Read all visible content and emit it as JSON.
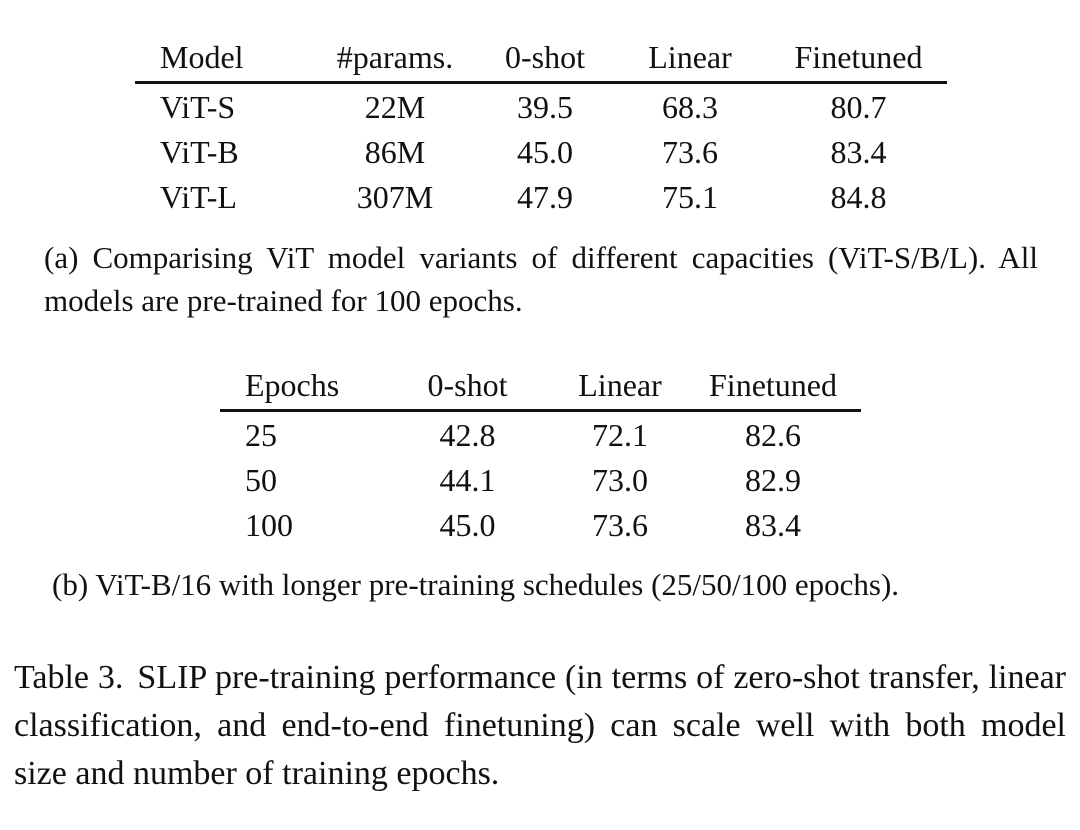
{
  "table_a": {
    "headers": [
      "Model",
      "#params.",
      "0-shot",
      "Linear",
      "Finetuned"
    ],
    "rows": [
      [
        "ViT-S",
        "22M",
        "39.5",
        "68.3",
        "80.7"
      ],
      [
        "ViT-B",
        "86M",
        "45.0",
        "73.6",
        "83.4"
      ],
      [
        "ViT-L",
        "307M",
        "47.9",
        "75.1",
        "84.8"
      ]
    ],
    "caption": "(a) Comparising ViT model variants of different capacities (ViT-S/B/L). All models are pre-trained for 100 epochs."
  },
  "table_b": {
    "headers": [
      "Epochs",
      "0-shot",
      "Linear",
      "Finetuned"
    ],
    "rows": [
      [
        "25",
        "42.8",
        "72.1",
        "82.6"
      ],
      [
        "50",
        "44.1",
        "73.0",
        "82.9"
      ],
      [
        "100",
        "45.0",
        "73.6",
        "83.4"
      ]
    ],
    "caption": "(b) ViT-B/16 with longer pre-training schedules (25/50/100 epochs)."
  },
  "table_caption": {
    "label": "Table 3.",
    "text": "SLIP pre-training performance (in terms of zero-shot transfer, linear classification, and end-to-end finetuning) can scale well with both model size and number of training epochs."
  }
}
